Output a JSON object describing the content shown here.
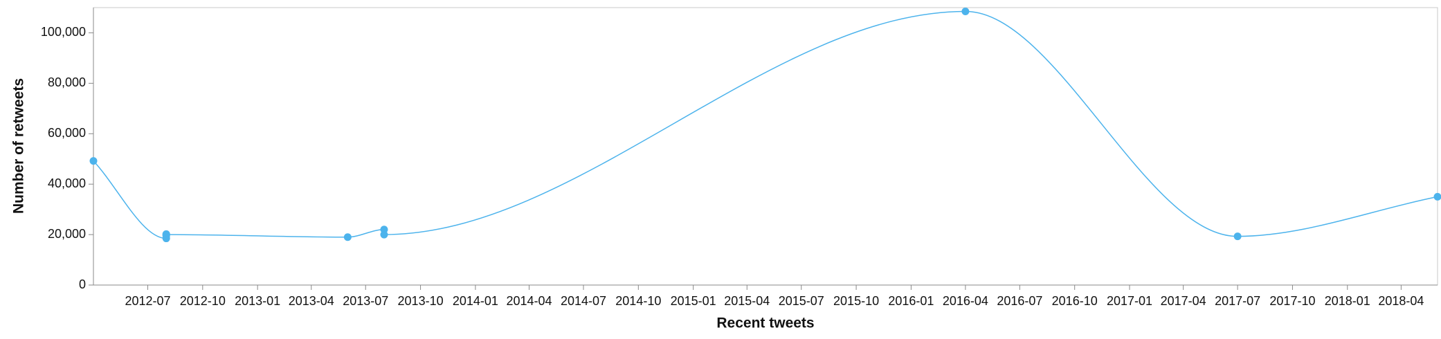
{
  "chart_data": {
    "type": "line",
    "x_label": "Recent tweets",
    "y_label": "Number of retweets",
    "x": [
      "2012-04",
      "2012-08",
      "2012-08",
      "2012-08",
      "2012-08",
      "2013-06",
      "2013-08",
      "2013-08",
      "2016-04",
      "2017-07",
      "2018-06"
    ],
    "values": [
      49200,
      18500,
      19500,
      20200,
      20000,
      19000,
      22000,
      20000,
      108500,
      19300,
      35000
    ],
    "color": "#4cb3ec",
    "xlim": [
      "2012-04",
      "2018-06"
    ],
    "xticks": [
      "2012-07",
      "2012-10",
      "2013-01",
      "2013-04",
      "2013-07",
      "2013-10",
      "2014-01",
      "2014-04",
      "2014-07",
      "2014-10",
      "2015-01",
      "2015-04",
      "2015-07",
      "2015-10",
      "2016-01",
      "2016-04",
      "2016-07",
      "2016-10",
      "2017-01",
      "2017-04",
      "2017-07",
      "2017-10",
      "2018-01",
      "2018-04"
    ],
    "ylim": [
      0,
      110000
    ],
    "yticks": [
      0,
      {
        "value": 20000,
        "label": "20,000"
      },
      {
        "value": 40000,
        "label": "40,000"
      },
      {
        "value": 60000,
        "label": "60,000"
      },
      {
        "value": 80000,
        "label": "80,000"
      },
      {
        "value": 100000,
        "label": "100,000"
      }
    ],
    "curve": "monotone"
  }
}
